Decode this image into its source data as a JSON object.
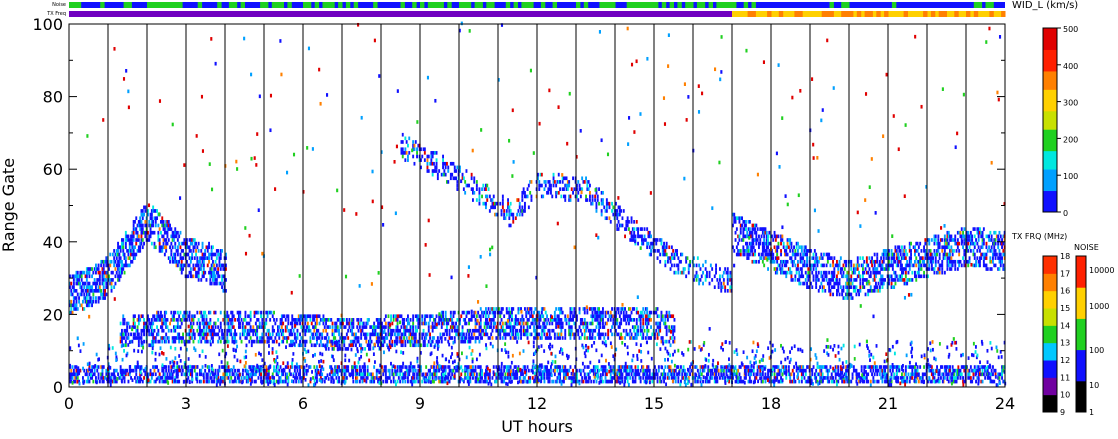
{
  "chart_data": {
    "type": "heatmap",
    "xlabel": "UT hours",
    "ylabel": "Range Gate",
    "xlim": [
      0,
      24
    ],
    "ylim": [
      0,
      100
    ],
    "x_ticks": [
      "0",
      "3",
      "6",
      "9",
      "12",
      "15",
      "18",
      "21",
      "24"
    ],
    "y_ticks": [
      "0",
      "20",
      "40",
      "60",
      "80",
      "100"
    ],
    "grid": "vertical lines every hour",
    "header_bars": {
      "noise_label": "Noise",
      "txfreq_label": "TX Freq"
    },
    "colorbars": [
      {
        "title": "WID_L (km/s)",
        "min": 0,
        "max": 500,
        "ticks": [
          "0",
          "100",
          "200",
          "300",
          "400",
          "500"
        ],
        "colors": [
          "#1010ff",
          "#00a0ff",
          "#00e8e0",
          "#20d020",
          "#c8e000",
          "#ffd000",
          "#ff8000",
          "#ff2000",
          "#e00000"
        ]
      },
      {
        "title": "TX FRQ (MHz)",
        "ticks": [
          "9",
          "10",
          "11",
          "12",
          "13",
          "14",
          "15",
          "16",
          "17",
          "18"
        ],
        "colors": [
          "#000000",
          "#7000a0",
          "#1010ff",
          "#00c8ff",
          "#20d020",
          "#c8e000",
          "#ffd000",
          "#ff8000",
          "#ff3000"
        ]
      },
      {
        "title": "NOISE",
        "ticks": [
          "1",
          "10",
          "100",
          "1000",
          "10000"
        ],
        "colors": [
          "#000000",
          "#1010ff",
          "#20d020",
          "#ffd000",
          "#ff2000"
        ]
      }
    ],
    "series": [
      {
        "name": "",
        "x": [
          0,
          0.5,
          1,
          1.5,
          2,
          2.5,
          3,
          3.5,
          4
        ],
        "y": [
          25,
          27,
          30,
          38,
          45,
          40,
          35,
          34,
          31
        ]
      },
      {
        "name": "",
        "x": [
          1.3,
          3,
          5,
          7,
          9,
          11,
          13,
          15,
          15.5
        ],
        "y": [
          15,
          16,
          16,
          14,
          15,
          17,
          17,
          17,
          15
        ]
      },
      {
        "name": "",
        "x": [
          0,
          4,
          8,
          12,
          16,
          20,
          24
        ],
        "y": [
          3,
          3,
          3,
          3,
          3,
          3,
          3
        ]
      },
      {
        "name": "",
        "x": [
          8.5,
          10,
          11.3,
          12,
          13.2,
          14.5,
          15.5,
          16.5,
          17
        ],
        "y": [
          66,
          57,
          47,
          55,
          54,
          42,
          34,
          30,
          28
        ]
      },
      {
        "name": "",
        "x": [
          17,
          18,
          19,
          20,
          21,
          22,
          23,
          24
        ],
        "y": [
          42,
          37,
          32,
          29,
          32,
          35,
          38,
          37
        ]
      }
    ]
  }
}
